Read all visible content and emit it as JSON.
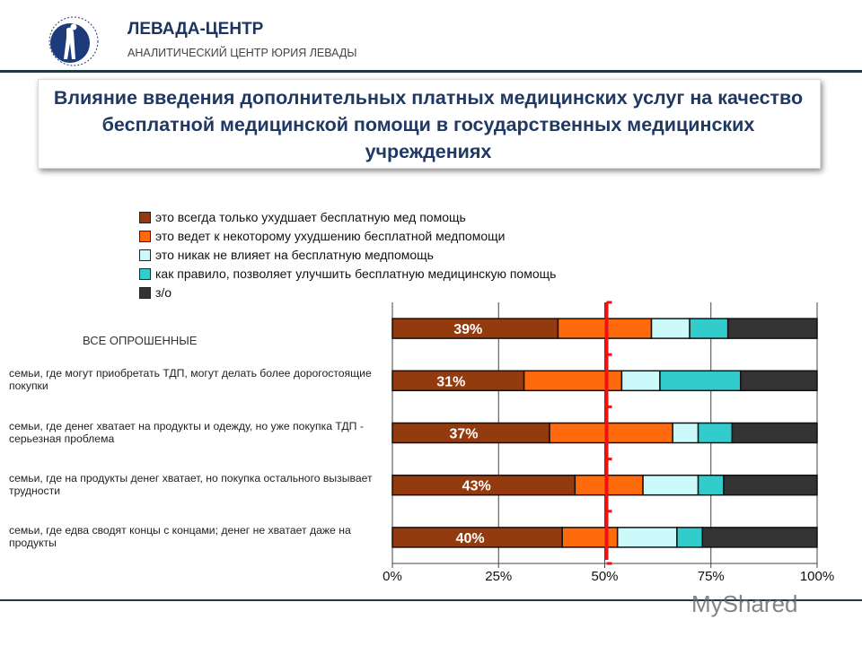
{
  "header": {
    "brand": "ЛЕВАДА-ЦЕНТР",
    "subtitle": "АНАЛИТИЧЕСКИЙ ЦЕНТР ЮРИЯ ЛЕВАДЫ",
    "logo_text": "Левада-центр"
  },
  "title": "Влияние введения дополнительных платных медицинских услуг на качество бесплатной медицинской помощи в государственных медицинских учреждениях",
  "watermark": "MyShared",
  "chart_data": {
    "type": "bar",
    "orientation": "horizontal",
    "stacked": "percent",
    "categories": [
      "ВСЕ ОПРОШЕННЫЕ",
      "семьи, где могут приобретать ТДП, могут делать более дорогостоящие покупки",
      "семьи, где денег хватает на продукты и одежду, но уже покупка ТДП - серьезная проблема",
      "семьи, где на продукты денег хватает, но покупка остального вызывает трудности",
      "семьи, где едва сводят концы с концами; денег не хватает даже на продукты"
    ],
    "series": [
      {
        "name": "это всегда только ухудшает бесплатную мед помощь",
        "color": "#933a0e",
        "values": [
          39,
          31,
          37,
          43,
          40
        ],
        "labels": [
          "39%",
          "31%",
          "37%",
          "43%",
          "40%"
        ]
      },
      {
        "name": "это ведет к некоторому ухудшению бесплатной медпомощи",
        "color": "#ff6a0d",
        "values": [
          22,
          23,
          29,
          16,
          13
        ]
      },
      {
        "name": "это никак не влияет на бесплатную медпомощь",
        "color": "#ccfafa",
        "values": [
          9,
          9,
          6,
          13,
          14
        ]
      },
      {
        "name": "как правило, позволяет улучшить бесплатную медицинскую помощь",
        "color": "#33cccc",
        "values": [
          9,
          19,
          8,
          6,
          6
        ]
      },
      {
        "name": "з/о",
        "color": "#333333",
        "values": [
          21,
          18,
          20,
          22,
          27
        ]
      }
    ],
    "xlim": [
      0,
      100
    ],
    "xticks": [
      "0%",
      "25%",
      "50%",
      "75%",
      "100%"
    ],
    "grid": true,
    "reference_line": {
      "value": 50,
      "color": "#ee1111"
    },
    "legend": "top"
  }
}
